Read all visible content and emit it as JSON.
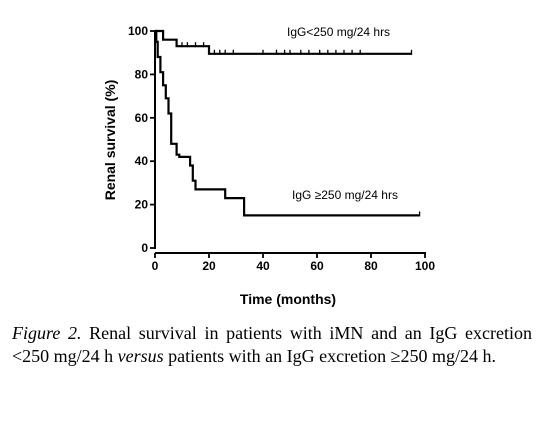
{
  "chart_data": {
    "type": "line",
    "subtype": "kaplan-meier step",
    "title": "",
    "xlabel": "Time (months)",
    "ylabel": "Renal survival (%)",
    "xlim": [
      0,
      100
    ],
    "ylim": [
      0,
      100
    ],
    "xticks": [
      0,
      20,
      40,
      60,
      80,
      100
    ],
    "xtick_labels": [
      "0",
      "20",
      "40",
      "60",
      "80",
      "100"
    ],
    "yticks": [
      0,
      20,
      40,
      60,
      80,
      100
    ],
    "ytick_labels": [
      "0",
      "20",
      "40",
      "60",
      "80",
      "100"
    ],
    "grid": false,
    "legend": "none (direct labels on curves)",
    "series": [
      {
        "name": "IgG<250 mg/24 hrs",
        "x": [
          0,
          3,
          3,
          8,
          8,
          20,
          20,
          95
        ],
        "y": [
          100,
          100,
          96,
          96,
          93,
          93,
          89.5,
          89.5
        ],
        "censored_x": [
          10,
          12,
          15,
          18,
          22,
          24,
          26,
          29,
          40,
          45,
          48,
          50,
          54,
          57,
          61,
          64,
          67,
          70,
          73,
          76,
          95
        ]
      },
      {
        "name": "IgG ≥250 mg/24 hrs",
        "x": [
          0,
          0.5,
          0.5,
          1,
          1,
          2,
          2,
          3,
          3,
          4,
          4,
          5,
          5,
          6,
          6,
          8,
          8,
          9,
          9,
          13,
          13,
          14,
          14,
          15,
          15,
          26,
          26,
          33,
          33,
          98
        ],
        "y": [
          100,
          100,
          95,
          95,
          88,
          88,
          81,
          81,
          75,
          75,
          69,
          69,
          62,
          62,
          48,
          48,
          43,
          43,
          42,
          42,
          38,
          38,
          31,
          31,
          27,
          27,
          23,
          23,
          15,
          15
        ],
        "censored_x": [
          98
        ]
      }
    ]
  },
  "caption": {
    "figure_label": "Figure 2.",
    "text_part1": " Renal survival in patients with iMN and an IgG excretion <250 mg/24 h ",
    "versus": "versus",
    "text_part2": " patients with an IgG excretion ≥250 mg/24 h."
  }
}
